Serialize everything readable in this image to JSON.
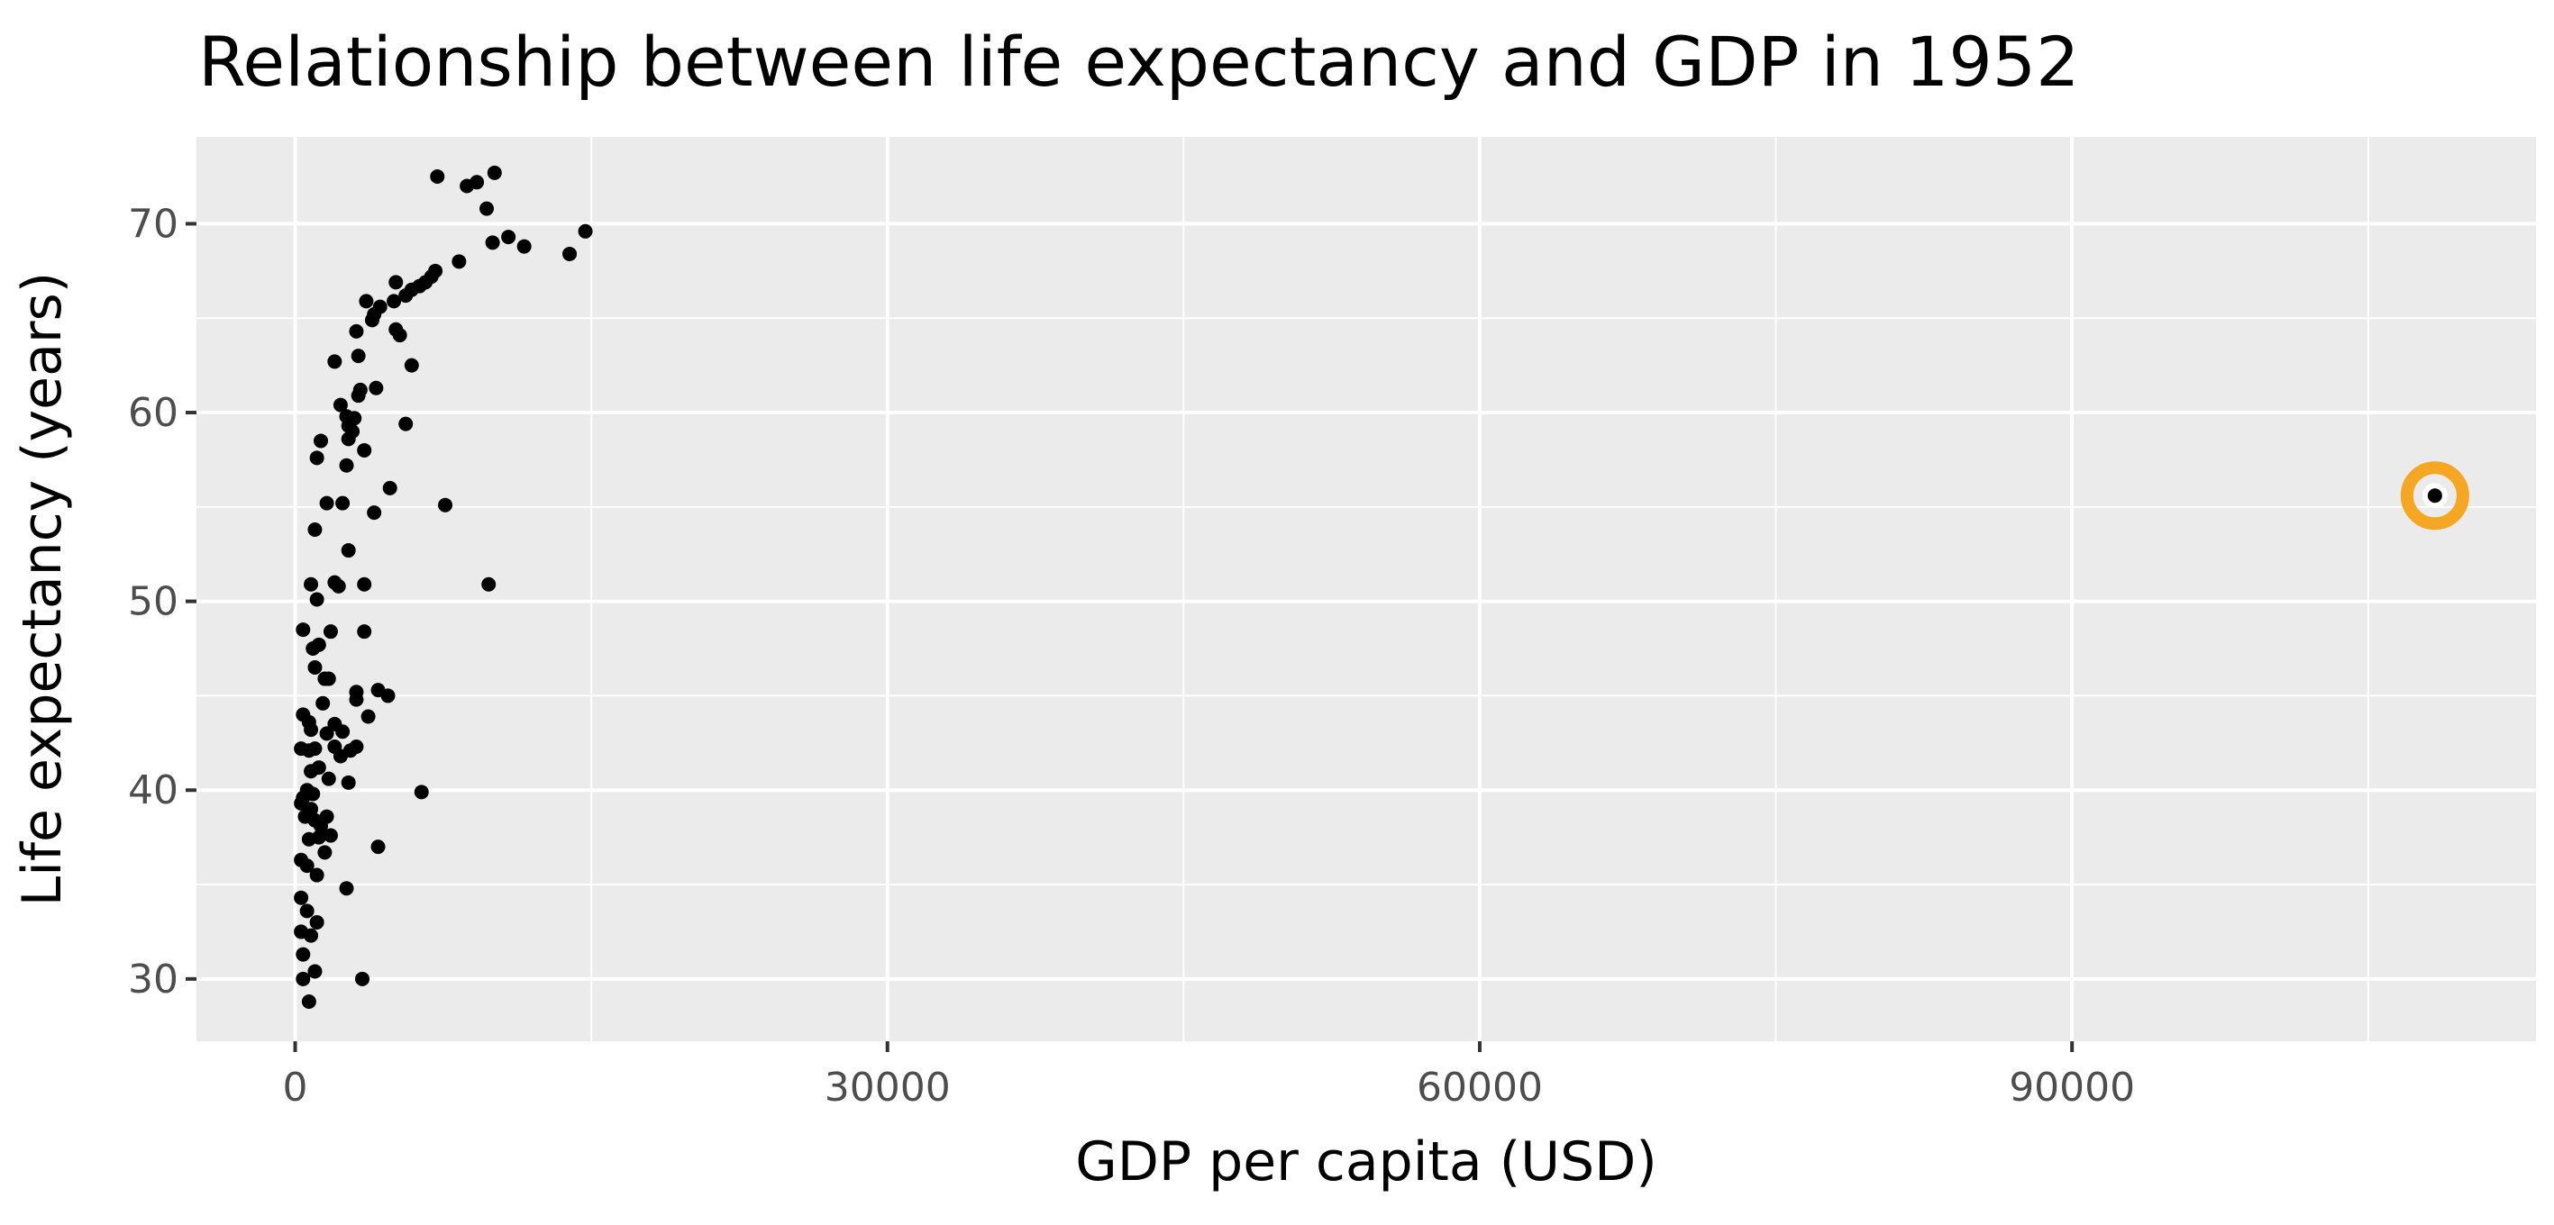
{
  "chart_data": {
    "type": "scatter",
    "title": "Relationship between life expectancy and GDP in 1952",
    "xlabel": "GDP per capita (USD)",
    "ylabel": "Life expectancy (years)",
    "xlim": [
      -5000,
      113500
    ],
    "ylim": [
      26.7,
      74.6
    ],
    "x_ticks": [
      0,
      30000,
      60000,
      90000
    ],
    "x_tick_labels": [
      "0",
      "30000",
      "60000",
      "90000"
    ],
    "y_ticks": [
      30,
      40,
      50,
      60,
      70
    ],
    "y_tick_labels": [
      "30",
      "40",
      "50",
      "60",
      "70"
    ],
    "x_minor_ticks": [
      15000,
      45000,
      75000,
      105000
    ],
    "y_minor_ticks": [
      35,
      45,
      55,
      65
    ],
    "grid": true,
    "panel_color": "#ebebeb",
    "grid_color": "#ffffff",
    "point_color": "#000000",
    "highlight_color": "#f5a623",
    "highlight": {
      "x": 108382,
      "y": 55.6
    },
    "points": [
      {
        "x": 7200,
        "y": 72.5
      },
      {
        "x": 8700,
        "y": 72.0
      },
      {
        "x": 9200,
        "y": 72.2
      },
      {
        "x": 10100,
        "y": 72.7
      },
      {
        "x": 9700,
        "y": 70.8
      },
      {
        "x": 14700,
        "y": 69.6
      },
      {
        "x": 10800,
        "y": 69.3
      },
      {
        "x": 10000,
        "y": 69.0
      },
      {
        "x": 11600,
        "y": 68.8
      },
      {
        "x": 13900,
        "y": 68.4
      },
      {
        "x": 8300,
        "y": 68.0
      },
      {
        "x": 7100,
        "y": 67.5
      },
      {
        "x": 6900,
        "y": 67.2
      },
      {
        "x": 6600,
        "y": 66.9
      },
      {
        "x": 6300,
        "y": 66.7
      },
      {
        "x": 5900,
        "y": 66.5
      },
      {
        "x": 5100,
        "y": 66.9
      },
      {
        "x": 5600,
        "y": 66.2
      },
      {
        "x": 5000,
        "y": 65.9
      },
      {
        "x": 3600,
        "y": 65.9
      },
      {
        "x": 4300,
        "y": 65.6
      },
      {
        "x": 4000,
        "y": 65.2
      },
      {
        "x": 3900,
        "y": 64.9
      },
      {
        "x": 5100,
        "y": 64.4
      },
      {
        "x": 5300,
        "y": 64.1
      },
      {
        "x": 3100,
        "y": 64.3
      },
      {
        "x": 3200,
        "y": 63.0
      },
      {
        "x": 2000,
        "y": 62.7
      },
      {
        "x": 5900,
        "y": 62.5
      },
      {
        "x": 4100,
        "y": 61.3
      },
      {
        "x": 3300,
        "y": 61.2
      },
      {
        "x": 3200,
        "y": 60.9
      },
      {
        "x": 2300,
        "y": 60.4
      },
      {
        "x": 2600,
        "y": 59.8
      },
      {
        "x": 3000,
        "y": 59.7
      },
      {
        "x": 2700,
        "y": 59.3
      },
      {
        "x": 2900,
        "y": 59.0
      },
      {
        "x": 2700,
        "y": 58.6
      },
      {
        "x": 5600,
        "y": 59.4
      },
      {
        "x": 1300,
        "y": 58.5
      },
      {
        "x": 3500,
        "y": 58.0
      },
      {
        "x": 1100,
        "y": 57.6
      },
      {
        "x": 2600,
        "y": 57.2
      },
      {
        "x": 1600,
        "y": 55.2
      },
      {
        "x": 2400,
        "y": 55.2
      },
      {
        "x": 4800,
        "y": 56.0
      },
      {
        "x": 7600,
        "y": 55.1
      },
      {
        "x": 4000,
        "y": 54.7
      },
      {
        "x": 1000,
        "y": 53.8
      },
      {
        "x": 2700,
        "y": 52.7
      },
      {
        "x": 800,
        "y": 50.9
      },
      {
        "x": 2000,
        "y": 51.0
      },
      {
        "x": 2200,
        "y": 50.8
      },
      {
        "x": 3500,
        "y": 50.9
      },
      {
        "x": 9800,
        "y": 50.9
      },
      {
        "x": 1100,
        "y": 50.1
      },
      {
        "x": 400,
        "y": 48.5
      },
      {
        "x": 1800,
        "y": 48.4
      },
      {
        "x": 3500,
        "y": 48.4
      },
      {
        "x": 900,
        "y": 47.5
      },
      {
        "x": 1200,
        "y": 47.7
      },
      {
        "x": 1000,
        "y": 46.5
      },
      {
        "x": 1500,
        "y": 45.9
      },
      {
        "x": 1700,
        "y": 45.9
      },
      {
        "x": 4200,
        "y": 45.3
      },
      {
        "x": 4700,
        "y": 45.0
      },
      {
        "x": 3100,
        "y": 45.2
      },
      {
        "x": 3100,
        "y": 44.8
      },
      {
        "x": 1400,
        "y": 44.6
      },
      {
        "x": 400,
        "y": 44.0
      },
      {
        "x": 3700,
        "y": 43.9
      },
      {
        "x": 700,
        "y": 43.6
      },
      {
        "x": 2000,
        "y": 43.5
      },
      {
        "x": 800,
        "y": 43.2
      },
      {
        "x": 1600,
        "y": 43.0
      },
      {
        "x": 2400,
        "y": 43.1
      },
      {
        "x": 300,
        "y": 42.2
      },
      {
        "x": 700,
        "y": 42.1
      },
      {
        "x": 1000,
        "y": 42.2
      },
      {
        "x": 2000,
        "y": 42.3
      },
      {
        "x": 2800,
        "y": 42.1
      },
      {
        "x": 3100,
        "y": 42.3
      },
      {
        "x": 2300,
        "y": 41.8
      },
      {
        "x": 800,
        "y": 41.0
      },
      {
        "x": 1200,
        "y": 41.2
      },
      {
        "x": 1700,
        "y": 40.6
      },
      {
        "x": 2700,
        "y": 40.4
      },
      {
        "x": 600,
        "y": 40.0
      },
      {
        "x": 400,
        "y": 39.6
      },
      {
        "x": 900,
        "y": 39.8
      },
      {
        "x": 6400,
        "y": 39.9
      },
      {
        "x": 300,
        "y": 39.3
      },
      {
        "x": 800,
        "y": 39.0
      },
      {
        "x": 500,
        "y": 38.6
      },
      {
        "x": 1000,
        "y": 38.4
      },
      {
        "x": 1600,
        "y": 38.6
      },
      {
        "x": 1300,
        "y": 38.1
      },
      {
        "x": 700,
        "y": 37.4
      },
      {
        "x": 1200,
        "y": 37.5
      },
      {
        "x": 1800,
        "y": 37.6
      },
      {
        "x": 4200,
        "y": 37.0
      },
      {
        "x": 1500,
        "y": 36.7
      },
      {
        "x": 300,
        "y": 36.3
      },
      {
        "x": 600,
        "y": 36.0
      },
      {
        "x": 1100,
        "y": 35.5
      },
      {
        "x": 2600,
        "y": 34.8
      },
      {
        "x": 300,
        "y": 34.3
      },
      {
        "x": 600,
        "y": 33.6
      },
      {
        "x": 1100,
        "y": 33.0
      },
      {
        "x": 300,
        "y": 32.5
      },
      {
        "x": 800,
        "y": 32.3
      },
      {
        "x": 400,
        "y": 31.3
      },
      {
        "x": 1000,
        "y": 30.4
      },
      {
        "x": 400,
        "y": 30.0
      },
      {
        "x": 3400,
        "y": 30.0
      },
      {
        "x": 700,
        "y": 28.8
      },
      {
        "x": 108382,
        "y": 55.6
      }
    ]
  }
}
